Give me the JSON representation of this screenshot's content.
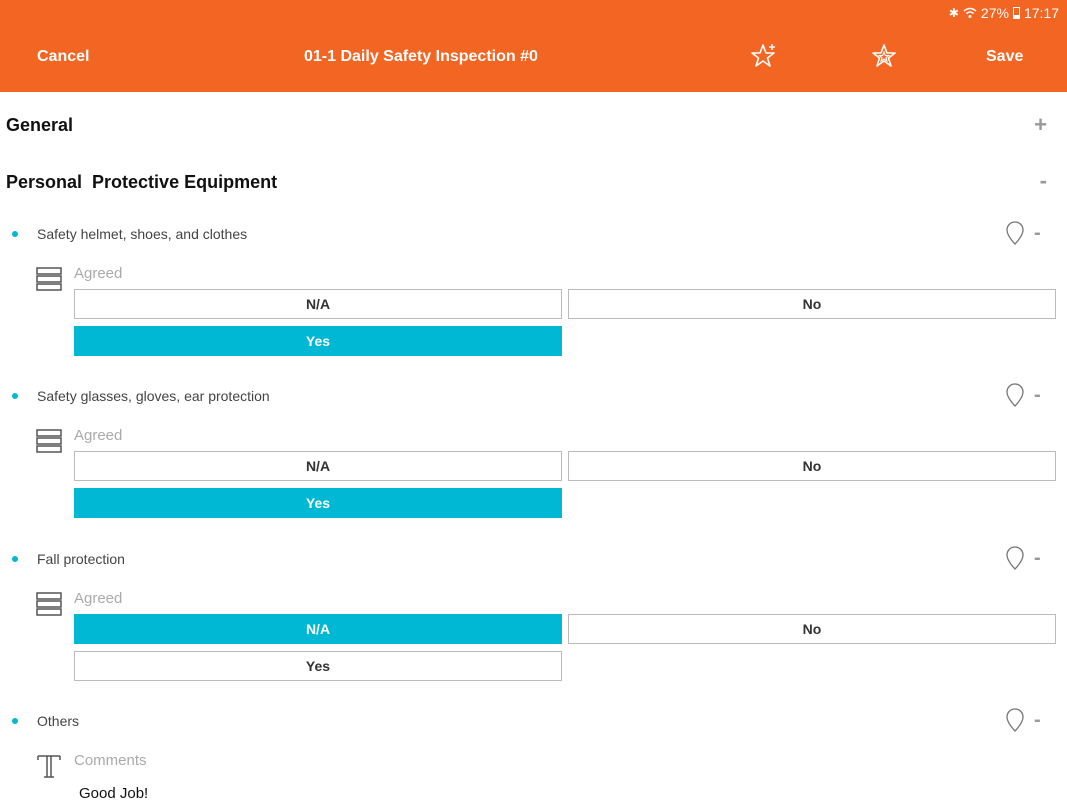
{
  "status_bar": {
    "battery": "27%",
    "time": "17:17"
  },
  "header": {
    "cancel_label": "Cancel",
    "title": "01-1 Daily Safety Inspection #0",
    "save_label": "Save"
  },
  "sections": [
    {
      "title": "General",
      "toggle": "+"
    },
    {
      "title": "Personal  Protective Equipment",
      "toggle": "-"
    }
  ],
  "questions": [
    {
      "label": "Safety helmet, shoes, and clothes",
      "field_label": "Agreed",
      "options": [
        "N/A",
        "No",
        "Yes"
      ],
      "selected": "Yes"
    },
    {
      "label": "Safety glasses, gloves, ear protection",
      "field_label": "Agreed",
      "options": [
        "N/A",
        "No",
        "Yes"
      ],
      "selected": "Yes"
    },
    {
      "label": "Fall protection",
      "field_label": "Agreed",
      "options": [
        "N/A",
        "No",
        "Yes"
      ],
      "selected": "N/A"
    },
    {
      "label": "Others",
      "field_label": "Comments",
      "value": "Good Job!"
    }
  ],
  "colors": {
    "brand": "#f26522",
    "accent": "#00b8d4"
  }
}
